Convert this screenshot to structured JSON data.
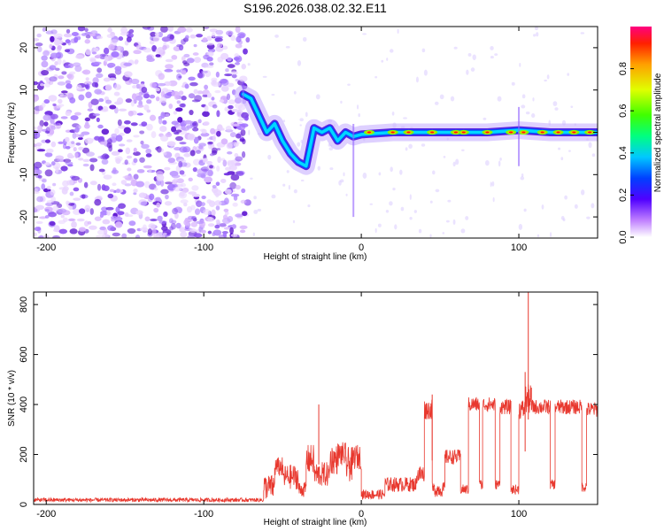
{
  "title": "S196.2026.038.02.32.E11",
  "chart_data": [
    {
      "type": "heatmap",
      "name": "spectrogram",
      "xlabel": "Height of straight line (km)",
      "ylabel": "Frequency (Hz)",
      "xlim": [
        -208,
        150
      ],
      "ylim": [
        -25,
        25
      ],
      "xticks": [
        -200,
        -100,
        0,
        100
      ],
      "yticks": [
        -20,
        -10,
        0,
        10,
        20
      ],
      "colorbar": {
        "label": "Normalized spectral amplitude",
        "range": [
          0,
          1
        ],
        "ticks": [
          0.0,
          0.2,
          0.4,
          0.6,
          0.8
        ]
      },
      "regions": [
        {
          "desc": "noise",
          "x": [
            -208,
            -72
          ],
          "y": [
            -25,
            25
          ],
          "amplitude": 0.1
        },
        {
          "desc": "track",
          "points": [
            [
              -75,
              9
            ],
            [
              -70,
              8
            ],
            [
              -65,
              4
            ],
            [
              -60,
              0
            ],
            [
              -55,
              2
            ],
            [
              -50,
              -2
            ],
            [
              -45,
              -5
            ],
            [
              -40,
              -7
            ],
            [
              -35,
              -8
            ],
            [
              -30,
              1
            ],
            [
              -25,
              0
            ],
            [
              -20,
              1
            ],
            [
              -15,
              -2
            ],
            [
              -10,
              0
            ],
            [
              -5,
              -1
            ],
            [
              0,
              -0.5
            ],
            [
              20,
              0
            ],
            [
              40,
              0
            ],
            [
              60,
              0
            ],
            [
              80,
              0
            ],
            [
              100,
              0.5
            ],
            [
              120,
              0
            ],
            [
              150,
              0
            ]
          ]
        }
      ]
    },
    {
      "type": "line",
      "name": "snr",
      "xlabel": "Height of straight line (km)",
      "ylabel": "SNR (10 * v/v)",
      "xlim": [
        -208,
        150
      ],
      "ylim": [
        0,
        850
      ],
      "xticks": [
        -200,
        -100,
        0,
        100
      ],
      "yticks": [
        0,
        200,
        400,
        600,
        800
      ],
      "color": "#e8382e",
      "segments": [
        {
          "x": [
            -208,
            -62
          ],
          "level": 18,
          "noise": 8
        },
        {
          "x": [
            -62,
            -55
          ],
          "level": 70,
          "noise": 50
        },
        {
          "x": [
            -55,
            -50
          ],
          "level": 150,
          "noise": 40
        },
        {
          "x": [
            -50,
            -40
          ],
          "level": 110,
          "noise": 50
        },
        {
          "x": [
            -40,
            -35
          ],
          "level": 60,
          "noise": 30
        },
        {
          "x": [
            -35,
            -30
          ],
          "level": 180,
          "noise": 60
        },
        {
          "x": [
            -30,
            -20
          ],
          "level": 120,
          "noise": 50
        },
        {
          "x": [
            -20,
            -15
          ],
          "level": 180,
          "noise": 60
        },
        {
          "x": [
            -15,
            -10
          ],
          "level": 200,
          "noise": 50
        },
        {
          "x": [
            -10,
            -5
          ],
          "level": 160,
          "noise": 70
        },
        {
          "x": [
            -5,
            0
          ],
          "level": 190,
          "noise": 50
        },
        {
          "x": [
            0,
            15
          ],
          "level": 40,
          "noise": 20
        },
        {
          "x": [
            15,
            35
          ],
          "level": 80,
          "noise": 30
        },
        {
          "x": [
            35,
            40
          ],
          "level": 120,
          "noise": 40
        },
        {
          "x": [
            40,
            45
          ],
          "level": 380,
          "noise": 40
        },
        {
          "x": [
            45,
            53
          ],
          "level": 60,
          "noise": 30
        },
        {
          "x": [
            53,
            63
          ],
          "level": 190,
          "noise": 30
        },
        {
          "x": [
            63,
            68
          ],
          "level": 60,
          "noise": 20
        },
        {
          "x": [
            68,
            75
          ],
          "level": 400,
          "noise": 30
        },
        {
          "x": [
            75,
            77
          ],
          "level": 80,
          "noise": 20
        },
        {
          "x": [
            77,
            85
          ],
          "level": 400,
          "noise": 30
        },
        {
          "x": [
            85,
            88
          ],
          "level": 80,
          "noise": 20
        },
        {
          "x": [
            88,
            95
          ],
          "level": 390,
          "noise": 30
        },
        {
          "x": [
            95,
            100
          ],
          "level": 60,
          "noise": 20
        },
        {
          "x": [
            100,
            104
          ],
          "level": 380,
          "noise": 40
        },
        {
          "x": [
            104,
            108
          ],
          "level": 420,
          "noise": 60
        },
        {
          "x": [
            108,
            120
          ],
          "level": 390,
          "noise": 30
        },
        {
          "x": [
            120,
            123
          ],
          "level": 80,
          "noise": 20
        },
        {
          "x": [
            123,
            140
          ],
          "level": 390,
          "noise": 30
        },
        {
          "x": [
            140,
            143
          ],
          "level": 70,
          "noise": 20
        },
        {
          "x": [
            143,
            150
          ],
          "level": 380,
          "noise": 30
        }
      ],
      "spikes": [
        {
          "x": -27,
          "y": 400
        },
        {
          "x": 45,
          "y": 440
        },
        {
          "x": 104,
          "y": 530
        },
        {
          "x": 106,
          "y": 850
        }
      ]
    }
  ]
}
